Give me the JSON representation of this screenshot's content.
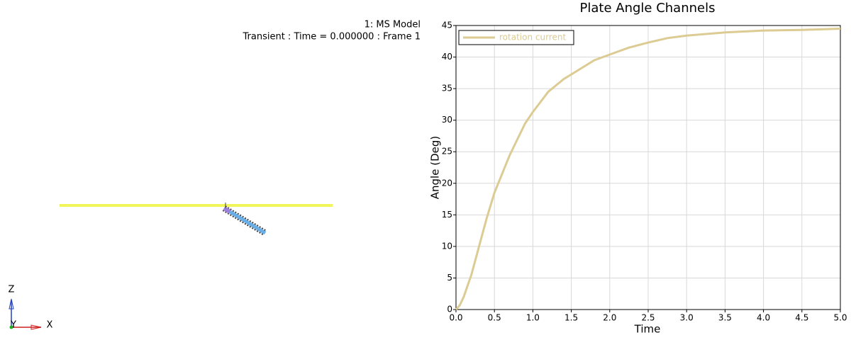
{
  "viewport": {
    "model_label": "1: MS Model",
    "frame_label": "Transient : Time = 0.000000 : Frame 1",
    "triad": {
      "z": "Z",
      "y": "Y",
      "x": "X"
    }
  },
  "chart_data": {
    "type": "line",
    "title": "Plate Angle Channels",
    "x_label": "Time",
    "y_label": "Angle (Deg)",
    "x": [
      0,
      0.05,
      0.1,
      0.2,
      0.3,
      0.4,
      0.5,
      0.6,
      0.7,
      0.8,
      0.9,
      1.0,
      1.2,
      1.4,
      1.6,
      1.8,
      2.0,
      2.25,
      2.5,
      2.75,
      3.0,
      3.5,
      4.0,
      4.5,
      5.0
    ],
    "series": [
      {
        "name": "rotation current",
        "color": "#dccb93",
        "values": [
          0,
          0.7,
          2,
          5.5,
          10,
          14.5,
          18.5,
          21.5,
          24.5,
          27,
          29.5,
          31.3,
          34.5,
          36.5,
          38,
          39.5,
          40.4,
          41.5,
          42.3,
          43,
          43.4,
          43.9,
          44.2,
          44.3,
          44.5
        ]
      }
    ],
    "xlim": [
      0,
      5
    ],
    "ylim": [
      0,
      45
    ],
    "xticks": [
      {
        "value": 0,
        "label": "0.0"
      },
      {
        "value": 0.5,
        "label": "0.5"
      },
      {
        "value": 1,
        "label": "1.0"
      },
      {
        "value": 1.5,
        "label": "1.5"
      },
      {
        "value": 2,
        "label": "2.0"
      },
      {
        "value": 2.5,
        "label": "2.5"
      },
      {
        "value": 3,
        "label": "3.0"
      },
      {
        "value": 3.5,
        "label": "3.5"
      },
      {
        "value": 4,
        "label": "4.0"
      },
      {
        "value": 4.5,
        "label": "4.5"
      },
      {
        "value": 5,
        "label": "5.0"
      }
    ],
    "yticks": [
      0,
      5,
      10,
      15,
      20,
      25,
      30,
      35,
      40,
      45
    ],
    "grid": true,
    "legend": "top-left"
  }
}
